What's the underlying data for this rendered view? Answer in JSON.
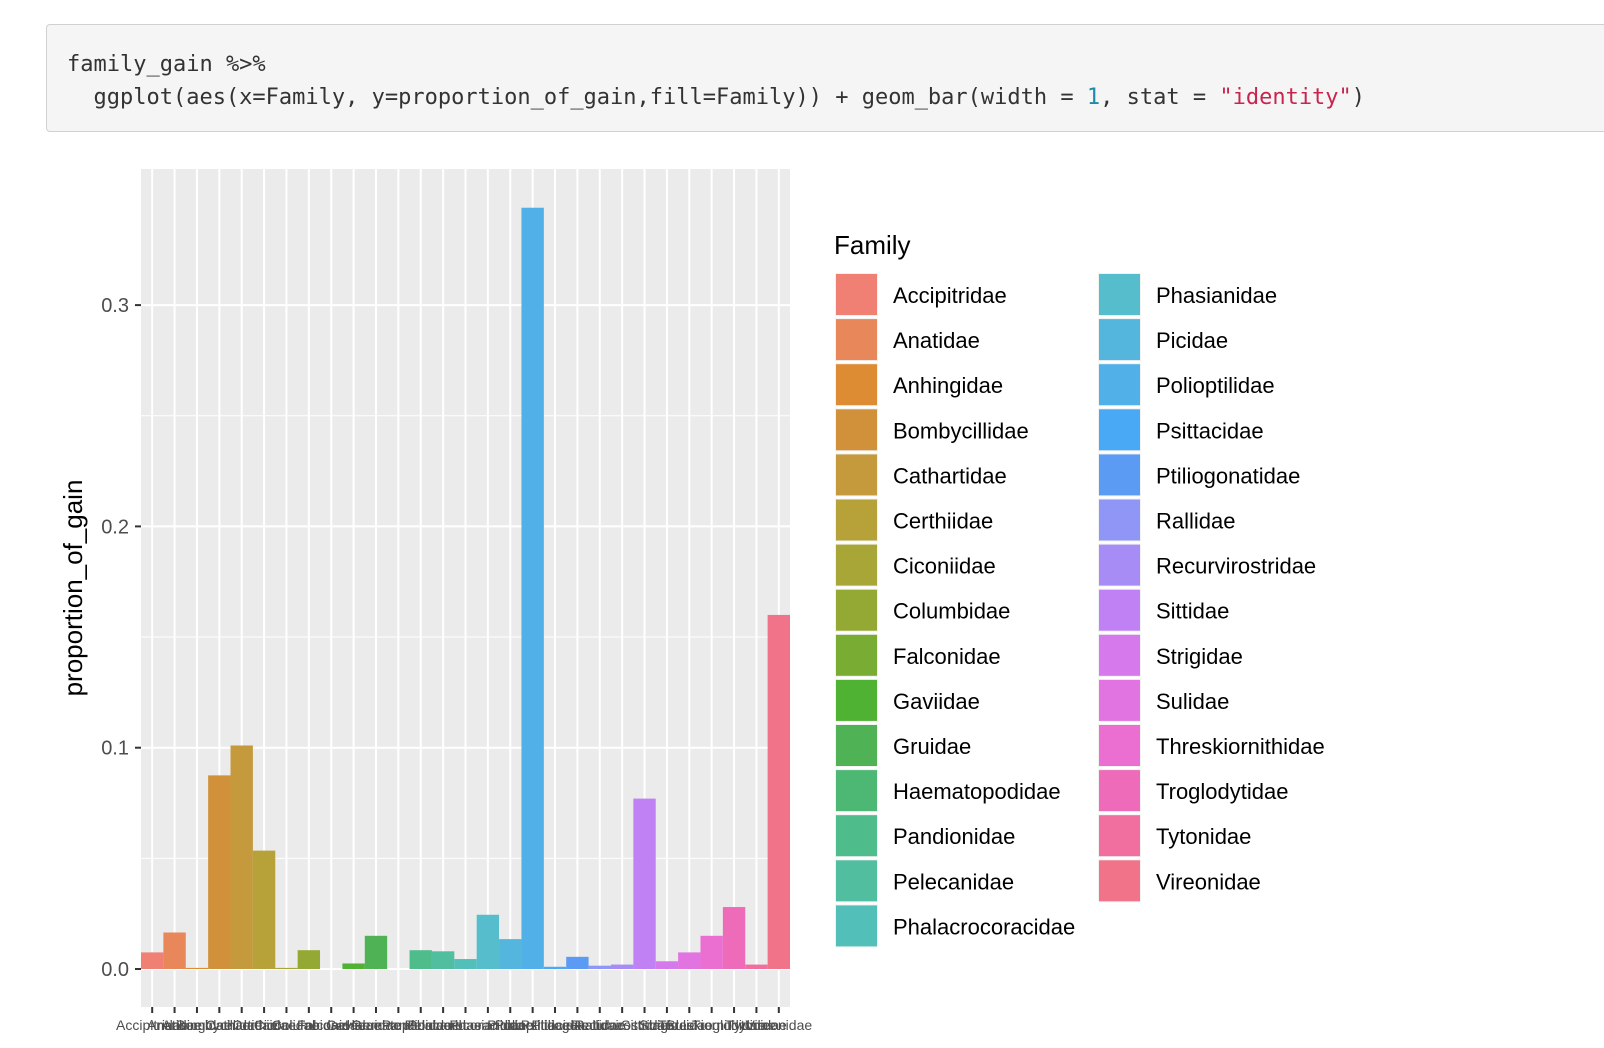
{
  "code": {
    "line1": "family_gain %>%",
    "line2_prefix": "  ggplot(aes(x=Family, y=proportion_of_gain,fill=Family)) + geom_bar(width = ",
    "line2_num": "1",
    "line2_mid": ", stat = ",
    "line2_str": "\"identity\"",
    "line2_suffix": ")"
  },
  "chart_data": {
    "type": "bar",
    "title": "",
    "xlabel": "",
    "ylabel": "proportion_of_gain",
    "ylim": [
      -0.006,
      0.35
    ],
    "yticks": [
      0.0,
      0.1,
      0.2,
      0.3
    ],
    "ytick_labels": [
      "0.0",
      "0.1",
      "0.2",
      "0.3"
    ],
    "grid": true,
    "legend_title": "Family",
    "legend_position": "right",
    "categories": [
      "Accipitridae",
      "Anatidae",
      "Anhingidae",
      "Bombycillidae",
      "Cathartidae",
      "Certhiidae",
      "Ciconiidae",
      "Columbidae",
      "Falconidae",
      "Gaviidae",
      "Gruidae",
      "Haematopodidae",
      "Pandionidae",
      "Pelecanidae",
      "Phalacrocoracidae",
      "Phasianidae",
      "Picidae",
      "Polioptilidae",
      "Psittacidae",
      "Ptiliogonatidae",
      "Rallidae",
      "Recurvirostridae",
      "Sittidae",
      "Strigidae",
      "Sulidae",
      "Threskiornithidae",
      "Troglodytidae",
      "Tytonidae",
      "Vireonidae"
    ],
    "values": [
      0.0075,
      0.0165,
      0.0005,
      0.0875,
      0.101,
      0.0535,
      0.0005,
      0.0085,
      0.0,
      0.0025,
      0.015,
      0.0,
      0.0085,
      0.008,
      0.0045,
      0.0245,
      0.0135,
      0.344,
      0.001,
      0.0055,
      0.0015,
      0.002,
      0.077,
      0.0035,
      0.0075,
      0.015,
      0.028,
      0.002,
      0.16
    ],
    "colors": [
      "#F07F74",
      "#E8875A",
      "#DD8C33",
      "#D1913A",
      "#C49A3C",
      "#B7A139",
      "#A7A636",
      "#93A934",
      "#78AC33",
      "#4FB233",
      "#4FB255",
      "#4DB873",
      "#4EBC8B",
      "#52BEA0",
      "#52BFB9",
      "#55BDCC",
      "#54B6DC",
      "#50B0E7",
      "#4AA9F5",
      "#5C9BF3",
      "#8F96F5",
      "#A88CF5",
      "#C081F5",
      "#D579EC",
      "#E174E0",
      "#EA6FD0",
      "#EE6BB9",
      "#F06F9F",
      "#F17389"
    ]
  }
}
